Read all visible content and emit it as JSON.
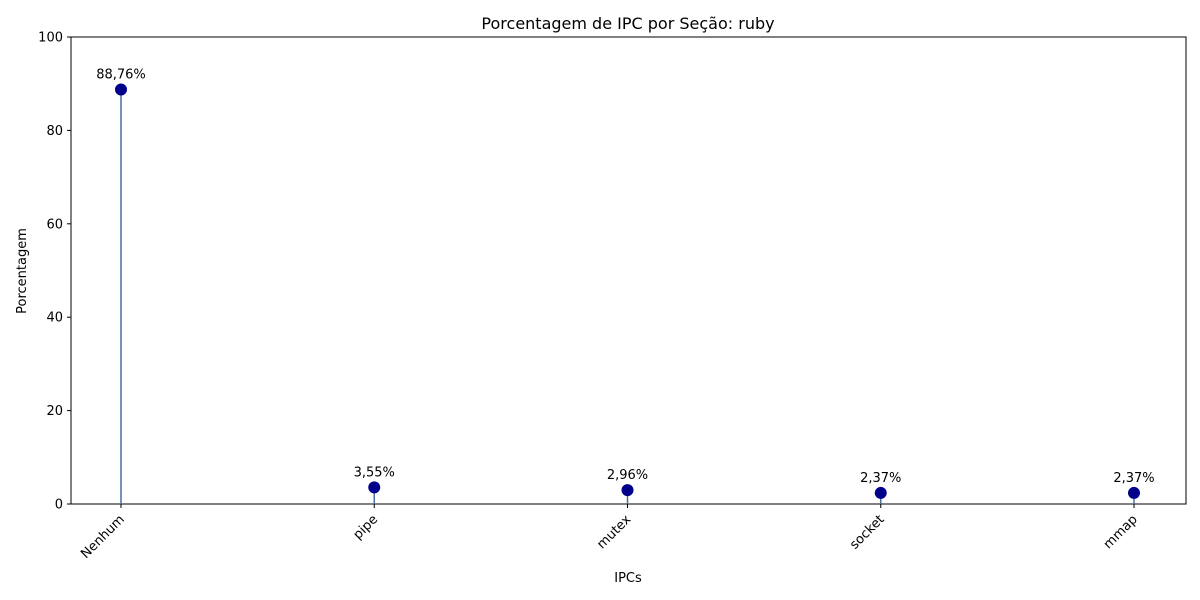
{
  "chart_data": {
    "type": "lollipop",
    "title": "Porcentagem de IPC por Seção: ruby",
    "xlabel": "IPCs",
    "ylabel": "Porcentagem",
    "ylim": [
      0,
      100
    ],
    "yticks": [
      0,
      20,
      40,
      60,
      80,
      100
    ],
    "categories": [
      "Nenhum",
      "pipe",
      "mutex",
      "socket",
      "mmap"
    ],
    "values": [
      88.76,
      3.55,
      2.96,
      2.37,
      2.37
    ],
    "value_labels": [
      "88,76%",
      "3,55%",
      "2,96%",
      "2,37%",
      "2,37%"
    ],
    "grid": false,
    "colors": {
      "marker": "#00008b",
      "stem": "#4a6f9a"
    }
  }
}
